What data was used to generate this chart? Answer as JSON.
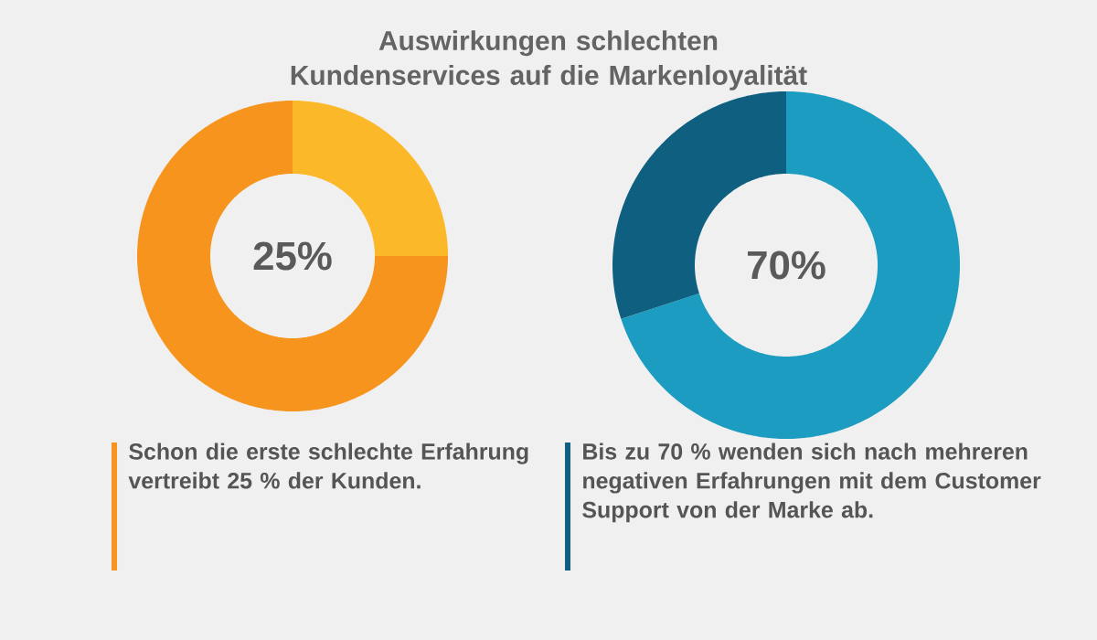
{
  "chart_data": [
    {
      "type": "donut",
      "title": "Auswirkungen schlechten Kundenservices auf die Markenloyalität",
      "categories": [
        null,
        null
      ],
      "values": [
        25,
        75
      ],
      "colors": [
        "#fbb829",
        "#f7941d"
      ],
      "value_labels": [
        "25%",
        null
      ],
      "annotations": [
        "Schon die erste schlechte Erfahrung vertreibt 25 % der Kunden."
      ]
    },
    {
      "type": "donut",
      "categories": [
        null,
        null
      ],
      "values": [
        70,
        30
      ],
      "colors": [
        "#1b9cc0",
        "#0f5f80"
      ],
      "value_labels": [
        "70%",
        null
      ],
      "annotations": [
        "Bis zu 70 % wenden sich nach mehreren negativen Erfahrungen mit dem Customer Support von der Marke ab."
      ]
    }
  ]
}
